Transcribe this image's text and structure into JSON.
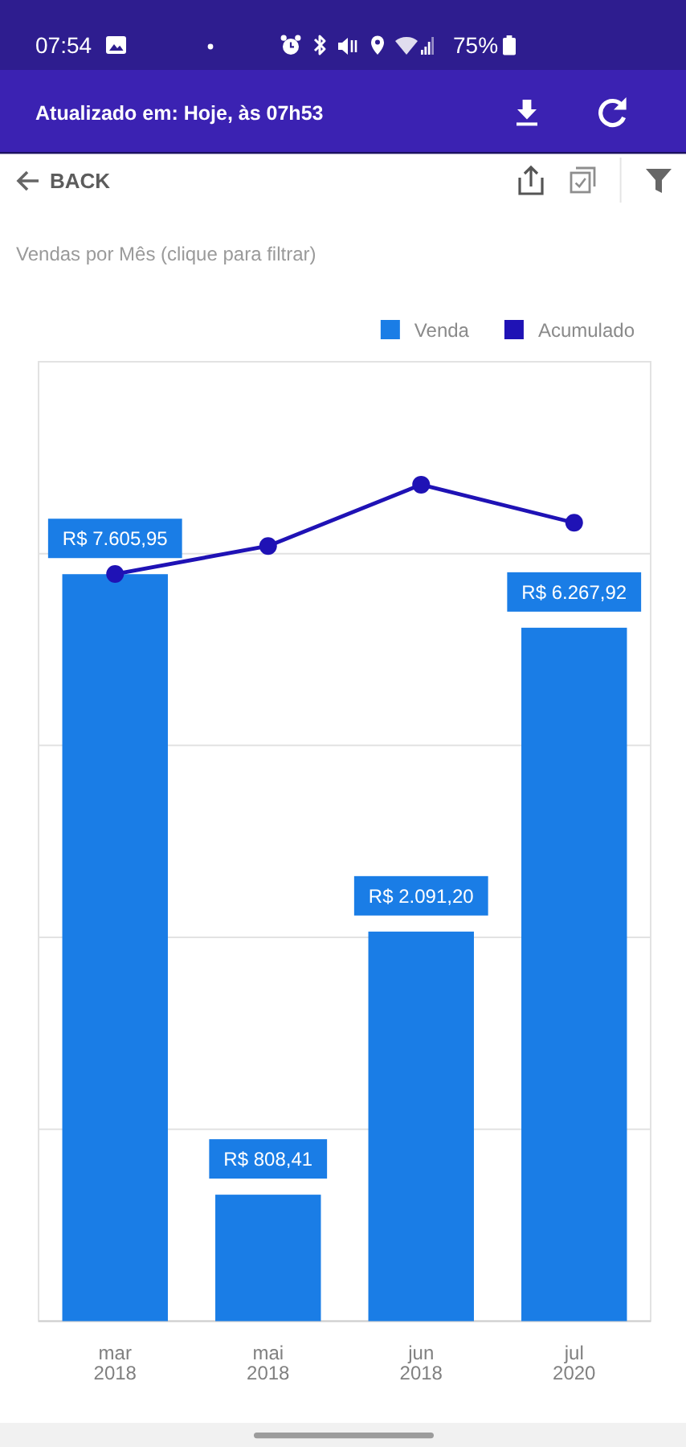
{
  "chart_data": {
    "type": "bar",
    "title": "Vendas por Mês (clique para filtrar)",
    "annotations": [
      "07:54",
      "75%",
      "Atualizado em: Hoje, às 07h53",
      "BACK"
    ],
    "categories": [
      "mar 2018",
      "mai 2018",
      "jun 2018",
      "jul 2020"
    ],
    "series": [
      {
        "name": "Venda",
        "color": "#1a7de6",
        "values": [
          7605.95,
          808.41,
          2091.2,
          6267.92
        ],
        "value_labels": [
          "R$ 7.605,95",
          "R$ 808,41",
          "R$ 2.091,20",
          "R$ 6.267,92"
        ]
      },
      {
        "name": "Acumulado",
        "type": "line",
        "color": "#1f12b5",
        "values": [
          7610,
          8420,
          10510,
          9160
        ]
      }
    ],
    "log": true,
    "ylim": [
      512,
      16384
    ],
    "yticks": [
      {
        "value": 1024,
        "label": null
      },
      {
        "value": 2048,
        "label": null
      },
      {
        "value": 4096,
        "label": null
      },
      {
        "value": 8192,
        "label": null
      }
    ],
    "grid": "y",
    "tick_labels": "x",
    "legend": "top right",
    "marker": "circle"
  }
}
